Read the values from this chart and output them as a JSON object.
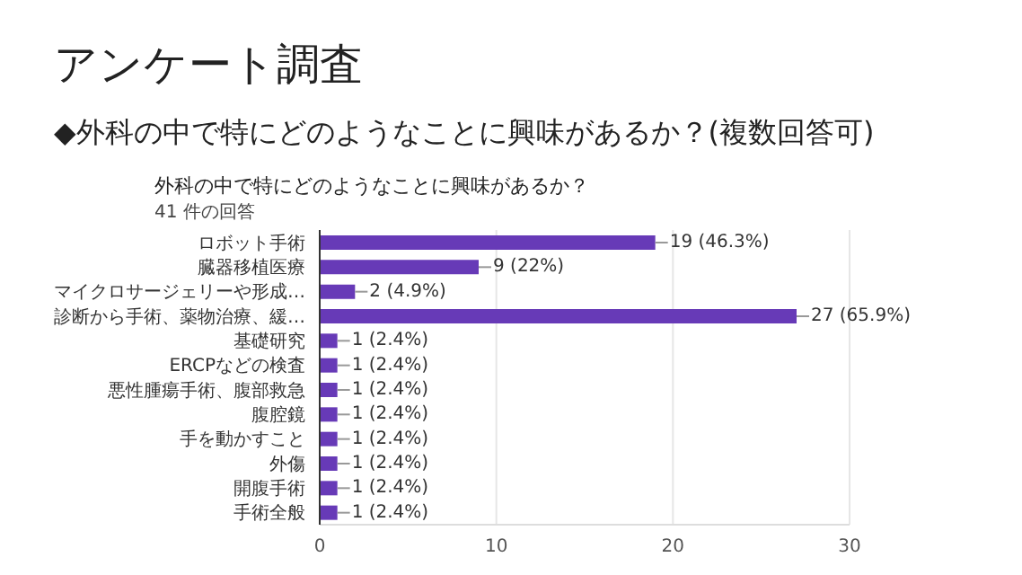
{
  "chart_data": {
    "type": "bar",
    "orientation": "horizontal",
    "title": "アンケート調査",
    "subtitle": "◆外科の中で特にどのようなことに興味があるか？(複数回答可)",
    "annotations": [
      "外科の中で特にどのようなことに興味があるか？",
      "41 件の回答"
    ],
    "categories": [
      "ロボット手術",
      "臓器移植医療",
      "マイクロサージェリーや形成…",
      "診断から手術、薬物治療、緩…",
      "基礎研究",
      "ERCPなどの検査",
      "悪性腫瘍手術、腹部救急",
      "腹腔鏡",
      "手を動かすこと",
      "外傷",
      "開腹手術",
      "手術全般"
    ],
    "values": [
      19,
      9,
      2,
      27,
      1,
      1,
      1,
      1,
      1,
      1,
      1,
      1
    ],
    "value_labels": [
      "19 (46.3%)",
      "9 (22%)",
      "2 (4.9%)",
      "27 (65.9%)",
      "1 (2.4%)",
      "1 (2.4%)",
      "1 (2.4%)",
      "1 (2.4%)",
      "1 (2.4%)",
      "1 (2.4%)",
      "1 (2.4%)",
      "1 (2.4%)"
    ],
    "color": "#673ab7",
    "xlim": [
      0,
      30
    ],
    "xticks": [
      0,
      10,
      20,
      30
    ],
    "grid": "x"
  }
}
